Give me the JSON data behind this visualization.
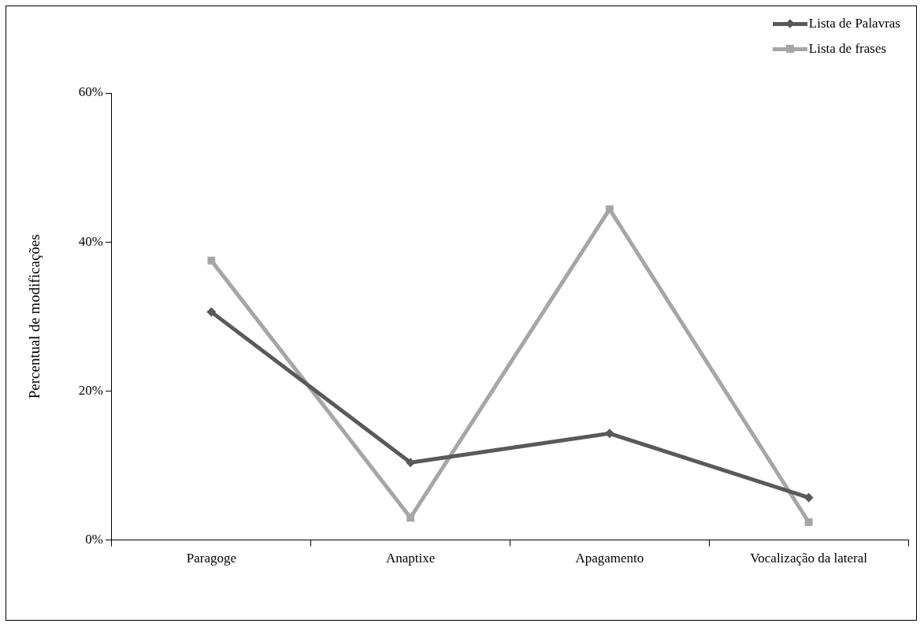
{
  "chart_data": {
    "type": "line",
    "ylabel": "Percentual de modificações",
    "categories": [
      "Paragoge",
      "Anaptixe",
      "Apagamento",
      "Vocalização da lateral"
    ],
    "series": [
      {
        "name": "Lista de Palavras",
        "color": "#595959",
        "values": [
          30.6,
          10.4,
          14.3,
          5.7
        ],
        "marker": "diamond"
      },
      {
        "name": "Lista de frases",
        "color": "#a6a6a6",
        "values": [
          37.5,
          3.0,
          44.4,
          2.4
        ],
        "marker": "square"
      }
    ],
    "ylim": [
      0,
      60
    ],
    "yticks": [
      {
        "value": 0,
        "label": "0%"
      },
      {
        "value": 20,
        "label": "20%"
      },
      {
        "value": 40,
        "label": "40%"
      },
      {
        "value": 60,
        "label": "60%"
      }
    ],
    "legend": "top right",
    "line_style": "solid"
  }
}
